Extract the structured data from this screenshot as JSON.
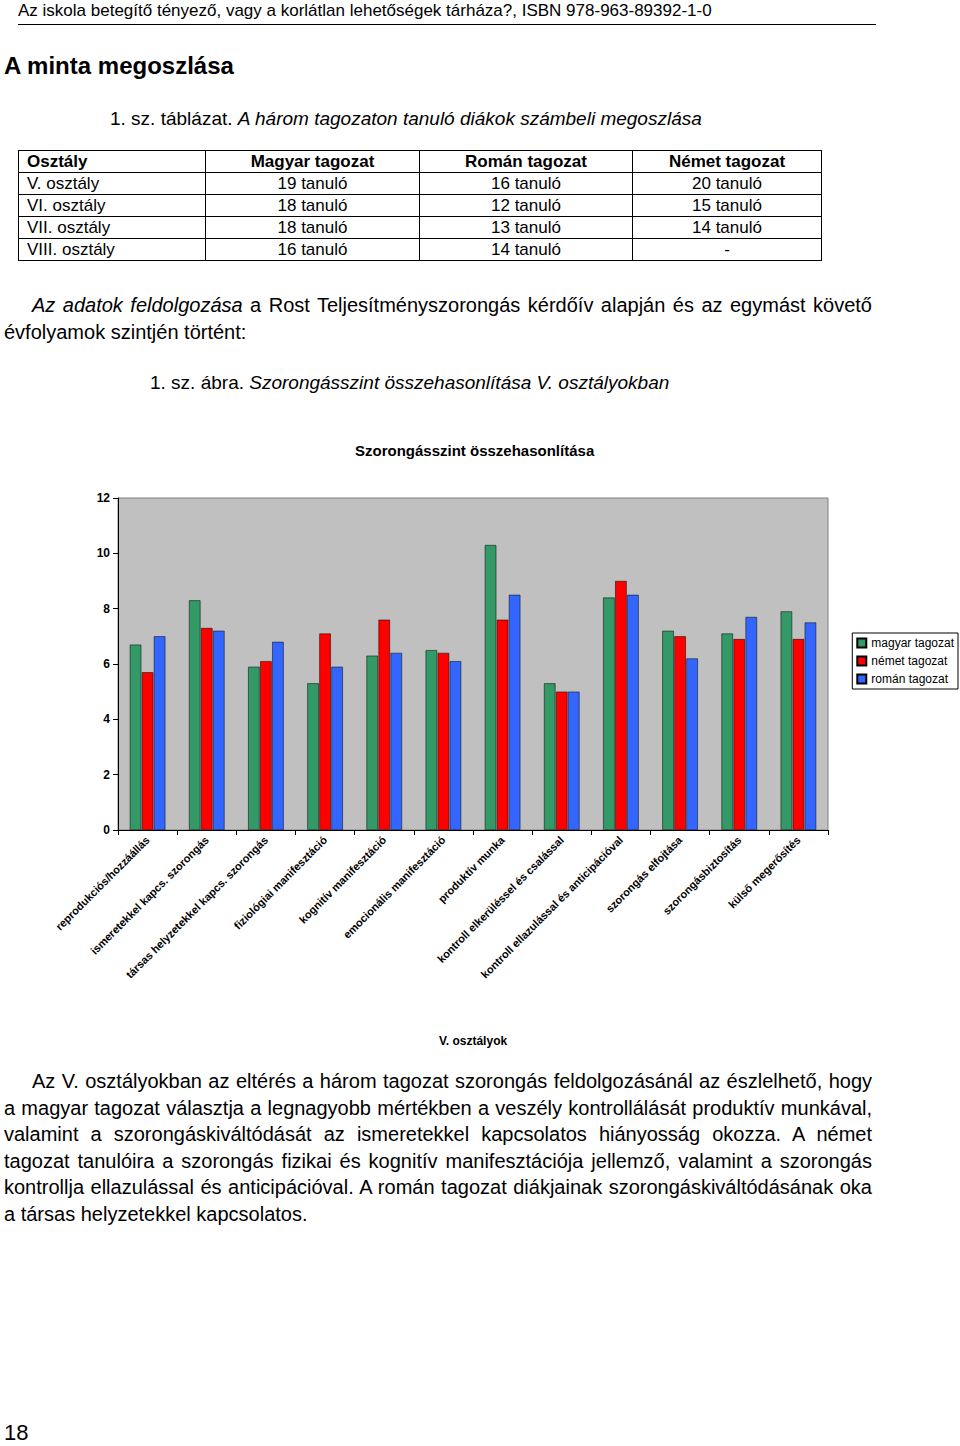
{
  "header": "Az iskola betegítő tényező, vagy a korlátlan lehetőségek tárháza?, ISBN 978-963-89392-1-0",
  "heading": "A minta megoszlása",
  "table": {
    "caption_prefix": "1. sz. táblázat.",
    "caption": "A három tagozaton tanuló diákok számbeli megoszlása",
    "rows": [
      [
        "Osztály",
        "Magyar tagozat",
        "Román tagozat",
        "Német tagozat"
      ],
      [
        "V. osztály",
        "19 tanuló",
        "16 tanuló",
        "20 tanuló"
      ],
      [
        "VI. osztály",
        "18 tanuló",
        "12 tanuló",
        "15 tanuló"
      ],
      [
        "VII. osztály",
        "18 tanuló",
        "13 tanuló",
        "14 tanuló"
      ],
      [
        "VIII. osztály",
        "16 tanuló",
        "14 tanuló",
        "-"
      ]
    ]
  },
  "intro_italic": "Az adatok feldolgozása",
  "intro_rest": "a Rost Teljesítményszorongás kérdőív alapján és az egymást követő évfolyamok szintjén történt:",
  "figure_caption_prefix": "1. sz. ábra.",
  "figure_caption": "Szorongásszint összehasonlítása V. osztályokban",
  "chart_data": {
    "type": "bar",
    "title": "Szorongásszint összehasonlítása",
    "x_label": "V. osztályok",
    "categories": [
      "reprodukciós/hozzáállás",
      "ismeretekkel kapcs. szorongás",
      "társas helyzetekkel kapcs. szorongás",
      "fiziológiai manifesztáció",
      "kognitív manifesztáció",
      "emocionális manifesztáció",
      "produktív munka",
      "kontroll elkerüléssel és csalással",
      "kontroll ellazulással és anticipációval",
      "szorongás elfojtása",
      "szorongásbiztosítás",
      "külső megerősítés"
    ],
    "series": [
      {
        "name": "magyar tagozat",
        "color": "#339966",
        "values": [
          6.7,
          8.3,
          5.9,
          5.3,
          6.3,
          6.5,
          10.3,
          5.3,
          8.4,
          7.2,
          7.1,
          7.9
        ]
      },
      {
        "name": "német tagozat",
        "color": "#ff0000",
        "values": [
          5.7,
          7.3,
          6.1,
          7.1,
          7.6,
          6.4,
          7.6,
          5.0,
          9.0,
          7.0,
          6.9,
          6.9
        ]
      },
      {
        "name": "román tagozat",
        "color": "#3366ff",
        "values": [
          7.0,
          7.2,
          6.8,
          5.9,
          6.4,
          6.1,
          8.5,
          5.0,
          8.5,
          6.2,
          7.7,
          7.5
        ]
      }
    ],
    "ylim": [
      0,
      12
    ],
    "yticks": [
      0,
      2,
      4,
      6,
      8,
      10,
      12
    ],
    "grid": false,
    "legend": "right"
  },
  "body": "Az V. osztályokban az eltérés a három tagozat szorongás feldolgozásánál az észlelhető, hogy a magyar tagozat választja a legnagyobb mértékben a veszély kontrollálását produktív munkával, valamint a szorongáskiváltódását az ismeretekkel kapcsolatos hiányosság okozza. A német tagozat tanulóira a szorongás fizikai és kognitív manifesztációja jellemző, valamint a szorongás kontrollja ellazulással és anticipációval. A román tagozat diákjainak szorongáskiváltódásának oka a társas helyzetekkel kapcsolatos.",
  "page_number": "18"
}
